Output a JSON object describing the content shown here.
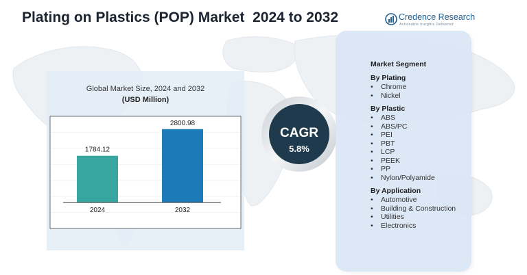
{
  "header": {
    "title": "Plating on Plastics (POP) Market  2024 to 2032"
  },
  "logo": {
    "name": "Credence Research",
    "tagline": "Actionable Insights Delivered",
    "icon": "bar-chart-globe-icon"
  },
  "chart_data": {
    "type": "bar",
    "title": "Global Market Size, 2024 and 2032",
    "unit": "(USD Million)",
    "categories": [
      "2024",
      "2032"
    ],
    "values": [
      1784.12,
      2800.98
    ],
    "value_labels": [
      "1784.12",
      "2800.98"
    ],
    "bar_colors": [
      "#38a6a0",
      "#1d7ab8"
    ],
    "ylim": [
      0,
      3500
    ],
    "grid": true,
    "legend": "none"
  },
  "cagr": {
    "label": "CAGR",
    "value": "5.8%"
  },
  "segments": {
    "heading": "Market Segment",
    "groups": [
      {
        "title": "By Plating",
        "items": [
          "Chrome",
          "Nickel"
        ]
      },
      {
        "title": "By Plastic",
        "items": [
          "ABS",
          "ABS/PC",
          "PEI",
          "PBT",
          "LCP",
          "PEEK",
          "PP",
          "Nylon/Polyamide"
        ]
      },
      {
        "title": "By Application",
        "items": [
          "Automotive",
          "Building & Construction",
          "Utilities",
          "Electronics"
        ]
      }
    ]
  },
  "colors": {
    "title": "#1b2430",
    "cagr_circle": "#1e3a4c",
    "panel_bg": "#d8e6f4",
    "logo": "#1f5f93"
  }
}
